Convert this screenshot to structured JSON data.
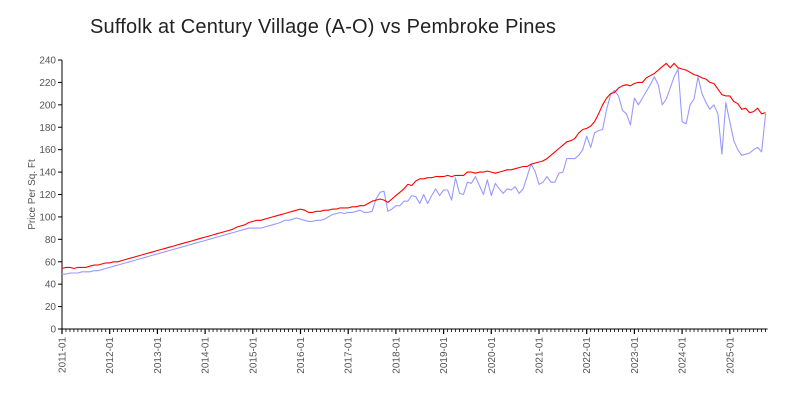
{
  "chart_data": {
    "type": "line",
    "title": "Suffolk at Century Village (A-O) vs Pembroke Pines",
    "xlabel": "",
    "ylabel": "Price Per Sq. Ft",
    "ylim": [
      0,
      240
    ],
    "yticks": [
      0,
      20,
      40,
      60,
      80,
      100,
      120,
      140,
      160,
      180,
      200,
      220,
      240
    ],
    "xticks": [
      "2011-01",
      "2012-01",
      "2013-01",
      "2014-01",
      "2015-01",
      "2016-01",
      "2017-01",
      "2018-01",
      "2019-01",
      "2020-01",
      "2021-01",
      "2022-01",
      "2023-01",
      "2024-01",
      "2025-01"
    ],
    "x_start": "2011-01",
    "x_end": "2025-10",
    "x_step": "monthly",
    "grid": false,
    "series": [
      {
        "name": "Pembroke Pines",
        "color": "#ff0000",
        "values": [
          54,
          55,
          55,
          54,
          55,
          55,
          55,
          56,
          57,
          57,
          58,
          59,
          59,
          60,
          60,
          61,
          62,
          63,
          64,
          65,
          66,
          67,
          68,
          69,
          70,
          71,
          72,
          73,
          74,
          75,
          76,
          77,
          78,
          79,
          80,
          81,
          82,
          83,
          84,
          85,
          86,
          87,
          88,
          89,
          91,
          92,
          93,
          95,
          96,
          97,
          97,
          98,
          99,
          100,
          101,
          102,
          103,
          104,
          105,
          106,
          107,
          106,
          104,
          104,
          105,
          105,
          106,
          106,
          107,
          107,
          108,
          108,
          108,
          109,
          109,
          110,
          110,
          112,
          114,
          115,
          116,
          115,
          113,
          116,
          119,
          122,
          125,
          129,
          128,
          132,
          134,
          134,
          135,
          135,
          136,
          136,
          136,
          137,
          136,
          137,
          137,
          137,
          140,
          140,
          139,
          140,
          140,
          141,
          140,
          139,
          140,
          141,
          142,
          142,
          143,
          144,
          145,
          145,
          147,
          148,
          149,
          150,
          152,
          155,
          158,
          161,
          164,
          167,
          168,
          170,
          175,
          178,
          179,
          181,
          185,
          192,
          200,
          206,
          210,
          211,
          215,
          217,
          218,
          217,
          219,
          220,
          220,
          224,
          226,
          228,
          231,
          234,
          237,
          233,
          237,
          233,
          232,
          231,
          229,
          227,
          226,
          224,
          223,
          220,
          219,
          214,
          209,
          208,
          208,
          203,
          201,
          196,
          197,
          193,
          194,
          197,
          192,
          193
        ]
      },
      {
        "name": "Suffolk at Century Village (A-O)",
        "color": "#9999ff",
        "values": [
          49,
          49,
          50,
          50,
          50,
          51,
          51,
          51,
          52,
          52,
          53,
          54,
          55,
          56,
          57,
          58,
          59,
          60,
          61,
          62,
          63,
          64,
          65,
          66,
          67,
          68,
          69,
          70,
          71,
          72,
          73,
          74,
          75,
          76,
          77,
          78,
          79,
          80,
          81,
          82,
          83,
          84,
          85,
          86,
          87,
          88,
          89,
          90,
          90,
          90,
          90,
          91,
          92,
          93,
          94,
          95,
          97,
          97,
          98,
          99,
          98,
          97,
          96,
          96,
          97,
          97,
          98,
          100,
          102,
          103,
          104,
          103,
          104,
          104,
          105,
          106,
          104,
          104,
          105,
          116,
          122,
          123,
          105,
          107,
          110,
          110,
          114,
          114,
          119,
          118,
          112,
          120,
          112,
          119,
          125,
          119,
          124,
          124,
          115,
          135,
          121,
          120,
          131,
          130,
          136,
          128,
          120,
          133,
          119,
          130,
          125,
          121,
          125,
          124,
          127,
          121,
          125,
          136,
          147,
          141,
          129,
          131,
          136,
          131,
          131,
          139,
          140,
          152,
          152,
          152,
          155,
          160,
          172,
          162,
          175,
          177,
          178,
          196,
          209,
          213,
          208,
          195,
          192,
          182,
          206,
          200,
          206,
          212,
          218,
          225,
          218,
          200,
          205,
          215,
          225,
          232,
          185,
          183,
          200,
          205,
          225,
          210,
          202,
          196,
          200,
          192,
          156,
          202,
          185,
          168,
          160,
          155,
          156,
          157,
          160,
          162,
          158,
          192
        ]
      }
    ]
  }
}
